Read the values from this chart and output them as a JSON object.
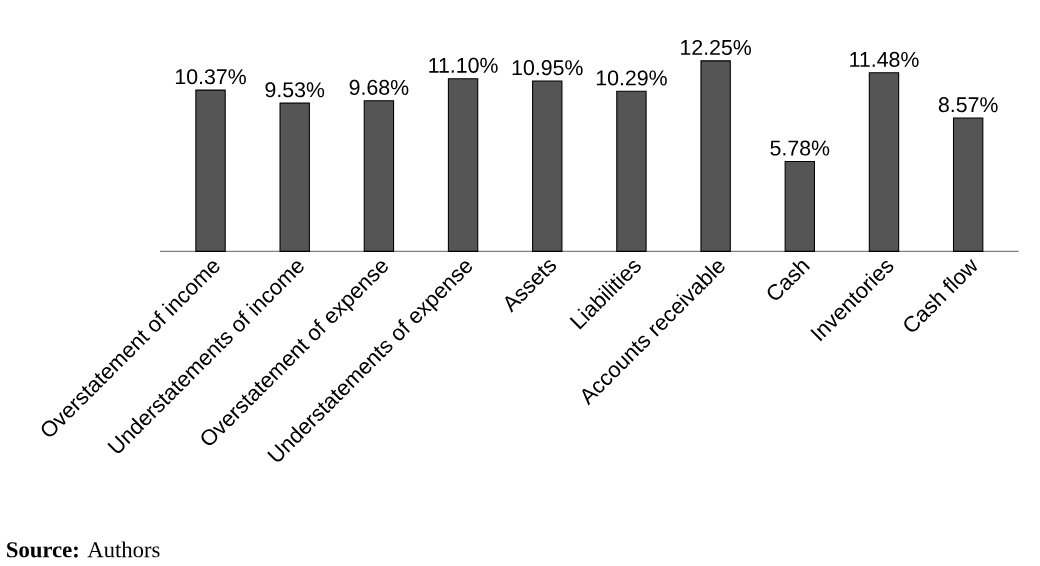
{
  "chart_data": {
    "type": "bar",
    "categories": [
      "Overstatement of income",
      "Understatements of income",
      "Overstatement of expense",
      "Understatements of expense",
      "Assets",
      "Liabilities",
      "Accounts receivable",
      "Cash",
      "Inventories",
      "Cash flow"
    ],
    "values": [
      10.37,
      9.53,
      9.68,
      11.1,
      10.95,
      10.29,
      12.25,
      5.78,
      11.48,
      8.57
    ],
    "value_labels": [
      "10.37%",
      "9.53%",
      "9.68%",
      "11.10%",
      "10.95%",
      "10.29%",
      "12.25%",
      "5.78%",
      "11.48%",
      "8.57%"
    ],
    "color": "#555555",
    "annotations": [
      "**Source:** Authors"
    ]
  }
}
